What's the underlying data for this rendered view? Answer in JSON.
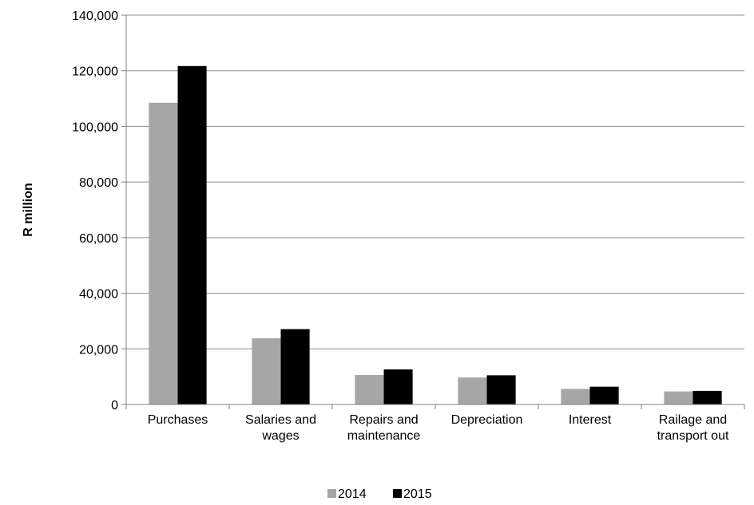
{
  "chart_data": {
    "type": "bar",
    "ylabel": "R million",
    "ylim": [
      0,
      140000
    ],
    "ytick_step": 20000,
    "grid": true,
    "legend_position": "bottom",
    "categories": [
      [
        "Purchases"
      ],
      [
        "Salaries and",
        "wages"
      ],
      [
        "Repairs and",
        "maintenance"
      ],
      [
        "Depreciation"
      ],
      [
        "Interest"
      ],
      [
        "Railage and",
        "transport out"
      ]
    ],
    "series": [
      {
        "name": "2014",
        "color": "#a6a6a6",
        "values": [
          108500,
          23800,
          10600,
          9700,
          5600,
          4700
        ]
      },
      {
        "name": "2015",
        "color": "#000000",
        "values": [
          121700,
          27100,
          12600,
          10500,
          6400,
          4900
        ]
      }
    ]
  }
}
